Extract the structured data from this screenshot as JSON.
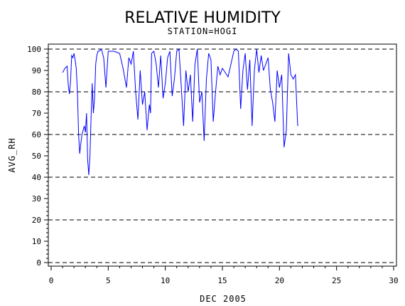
{
  "chart_data": {
    "type": "line",
    "title": "RELATIVE HUMIDITY",
    "subtitle": "STATION=HOGI",
    "xlabel": "DEC 2005",
    "ylabel": "AVG_RH",
    "xlim": [
      0,
      30
    ],
    "ylim": [
      0,
      100
    ],
    "x_ticks": [
      0,
      5,
      10,
      15,
      20,
      25,
      30
    ],
    "x_tick_labels": [
      "0",
      "5",
      "10",
      "15",
      "20",
      "25",
      "30"
    ],
    "y_ticks": [
      0,
      10,
      20,
      30,
      40,
      50,
      60,
      70,
      80,
      90,
      100
    ],
    "y_tick_labels": [
      "0",
      "10",
      "20",
      "30",
      "40",
      "50",
      "60",
      "70",
      "80",
      "90",
      "100"
    ],
    "reference_lines_y": [
      0,
      20,
      40,
      60,
      80,
      100
    ],
    "reference_line_style": "dashed",
    "line_color": "#0000ff",
    "series": [
      {
        "x": [
          1.0,
          1.2,
          1.4,
          1.5,
          1.6,
          1.7,
          1.8,
          1.9,
          2.0,
          2.1,
          2.2,
          2.3,
          2.4,
          2.5,
          2.6,
          2.7,
          2.8,
          2.9,
          3.0,
          3.1,
          3.2,
          3.3,
          3.4,
          3.5,
          3.6,
          3.7,
          3.8,
          3.9,
          4.0,
          4.1,
          4.2,
          4.4,
          4.6,
          4.8,
          5.0,
          5.5,
          6.0,
          6.3,
          6.6,
          6.8,
          7.0,
          7.2,
          7.4,
          7.6,
          7.8,
          8.0,
          8.2,
          8.4,
          8.6,
          8.7,
          8.8,
          9.0,
          9.2,
          9.4,
          9.6,
          9.8,
          10.0,
          10.2,
          10.4,
          10.6,
          10.8,
          11.0,
          11.2,
          11.4,
          11.6,
          11.8,
          12.0,
          12.2,
          12.4,
          12.6,
          12.8,
          13.0,
          13.2,
          13.4,
          13.6,
          13.8,
          14.0,
          14.2,
          14.4,
          14.6,
          14.8,
          15.0,
          15.5,
          16.0,
          16.2,
          16.4,
          16.6,
          16.8,
          17.0,
          17.2,
          17.4,
          17.6,
          17.8,
          18.0,
          18.2,
          18.4,
          18.6,
          18.8,
          19.0,
          19.2,
          19.4,
          19.6,
          19.8,
          20.0,
          20.2,
          20.4,
          20.6,
          20.8,
          21.0,
          21.2,
          21.4,
          21.6
        ],
        "y": [
          89,
          91,
          92,
          83,
          79,
          85,
          97,
          96,
          98,
          95,
          91,
          80,
          60,
          51,
          56,
          60,
          62,
          64,
          61,
          70,
          48,
          41,
          50,
          68,
          84,
          70,
          77,
          93,
          97,
          99,
          99,
          100,
          96,
          82,
          99,
          99,
          98,
          91,
          82,
          96,
          93,
          99,
          80,
          67,
          90,
          74,
          80,
          62,
          74,
          70,
          98,
          99,
          93,
          82,
          97,
          77,
          84,
          96,
          99,
          78,
          86,
          99,
          100,
          82,
          64,
          90,
          80,
          88,
          66,
          93,
          100,
          75,
          80,
          57,
          86,
          98,
          95,
          66,
          80,
          92,
          88,
          91,
          87,
          99,
          100,
          99,
          72,
          90,
          98,
          81,
          95,
          64,
          90,
          100,
          89,
          97,
          90,
          93,
          96,
          81,
          75,
          66,
          90,
          82,
          88,
          54,
          62,
          98,
          88,
          86,
          88,
          64
        ],
        "color": "#0000ff"
      }
    ]
  }
}
